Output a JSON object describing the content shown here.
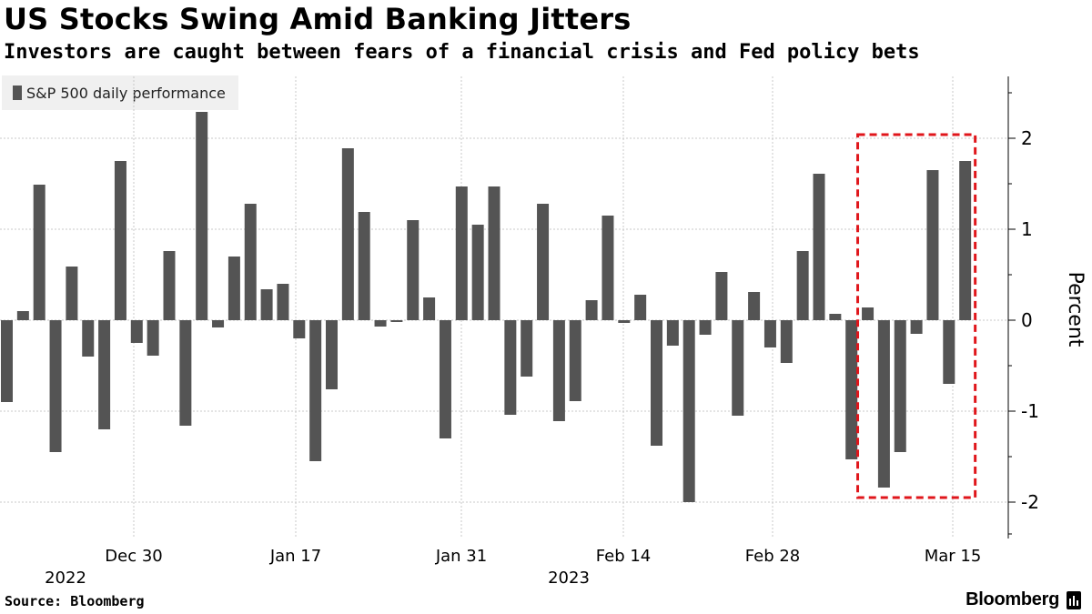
{
  "title": "US Stocks Swing Amid Banking Jitters",
  "subtitle": "Investors are caught between fears of a financial crisis and Fed policy bets",
  "source": "Source: Bloomberg",
  "brand": "Bloomberg",
  "colors": {
    "bar": "#545454",
    "highlight": "#e0161b",
    "grid": "#c8c8c8"
  },
  "chart_data": {
    "type": "bar",
    "legend": "S&P 500 daily performance",
    "legend_position": "top-left",
    "ylabel": "Percent",
    "y_axis_side": "right",
    "ylim": [
      -2.45,
      2.65
    ],
    "yticks": [
      -2,
      -1,
      0,
      1,
      2
    ],
    "grid": true,
    "x_tick_labels": [
      "Dec 30",
      "Jan 17",
      "Jan 31",
      "Feb 14",
      "Feb 28",
      "Mar 15"
    ],
    "year_labels": [
      "2022",
      "2023"
    ],
    "values": [
      -0.9,
      0.1,
      1.49,
      -1.45,
      0.59,
      -0.4,
      -1.2,
      1.75,
      -0.25,
      -0.39,
      0.76,
      -1.16,
      2.29,
      -0.08,
      0.7,
      1.28,
      0.34,
      0.4,
      -0.2,
      -1.55,
      -0.76,
      1.89,
      1.19,
      -0.07,
      -0.02,
      1.1,
      0.25,
      -1.3,
      1.47,
      1.05,
      1.47,
      -1.04,
      -0.62,
      1.28,
      -1.11,
      -0.89,
      0.22,
      1.15,
      -0.03,
      0.28,
      -1.38,
      -0.28,
      -2.0,
      -0.16,
      0.53,
      -1.05,
      0.31,
      -0.3,
      -0.47,
      0.76,
      1.61,
      0.07,
      -1.53,
      0.14,
      -1.84,
      -1.45,
      -0.15,
      1.65,
      -0.7,
      1.75
    ],
    "highlight_box": {
      "from_index": 53,
      "to_index": 59,
      "ymin": -1.95,
      "ymax": 2.04
    }
  }
}
